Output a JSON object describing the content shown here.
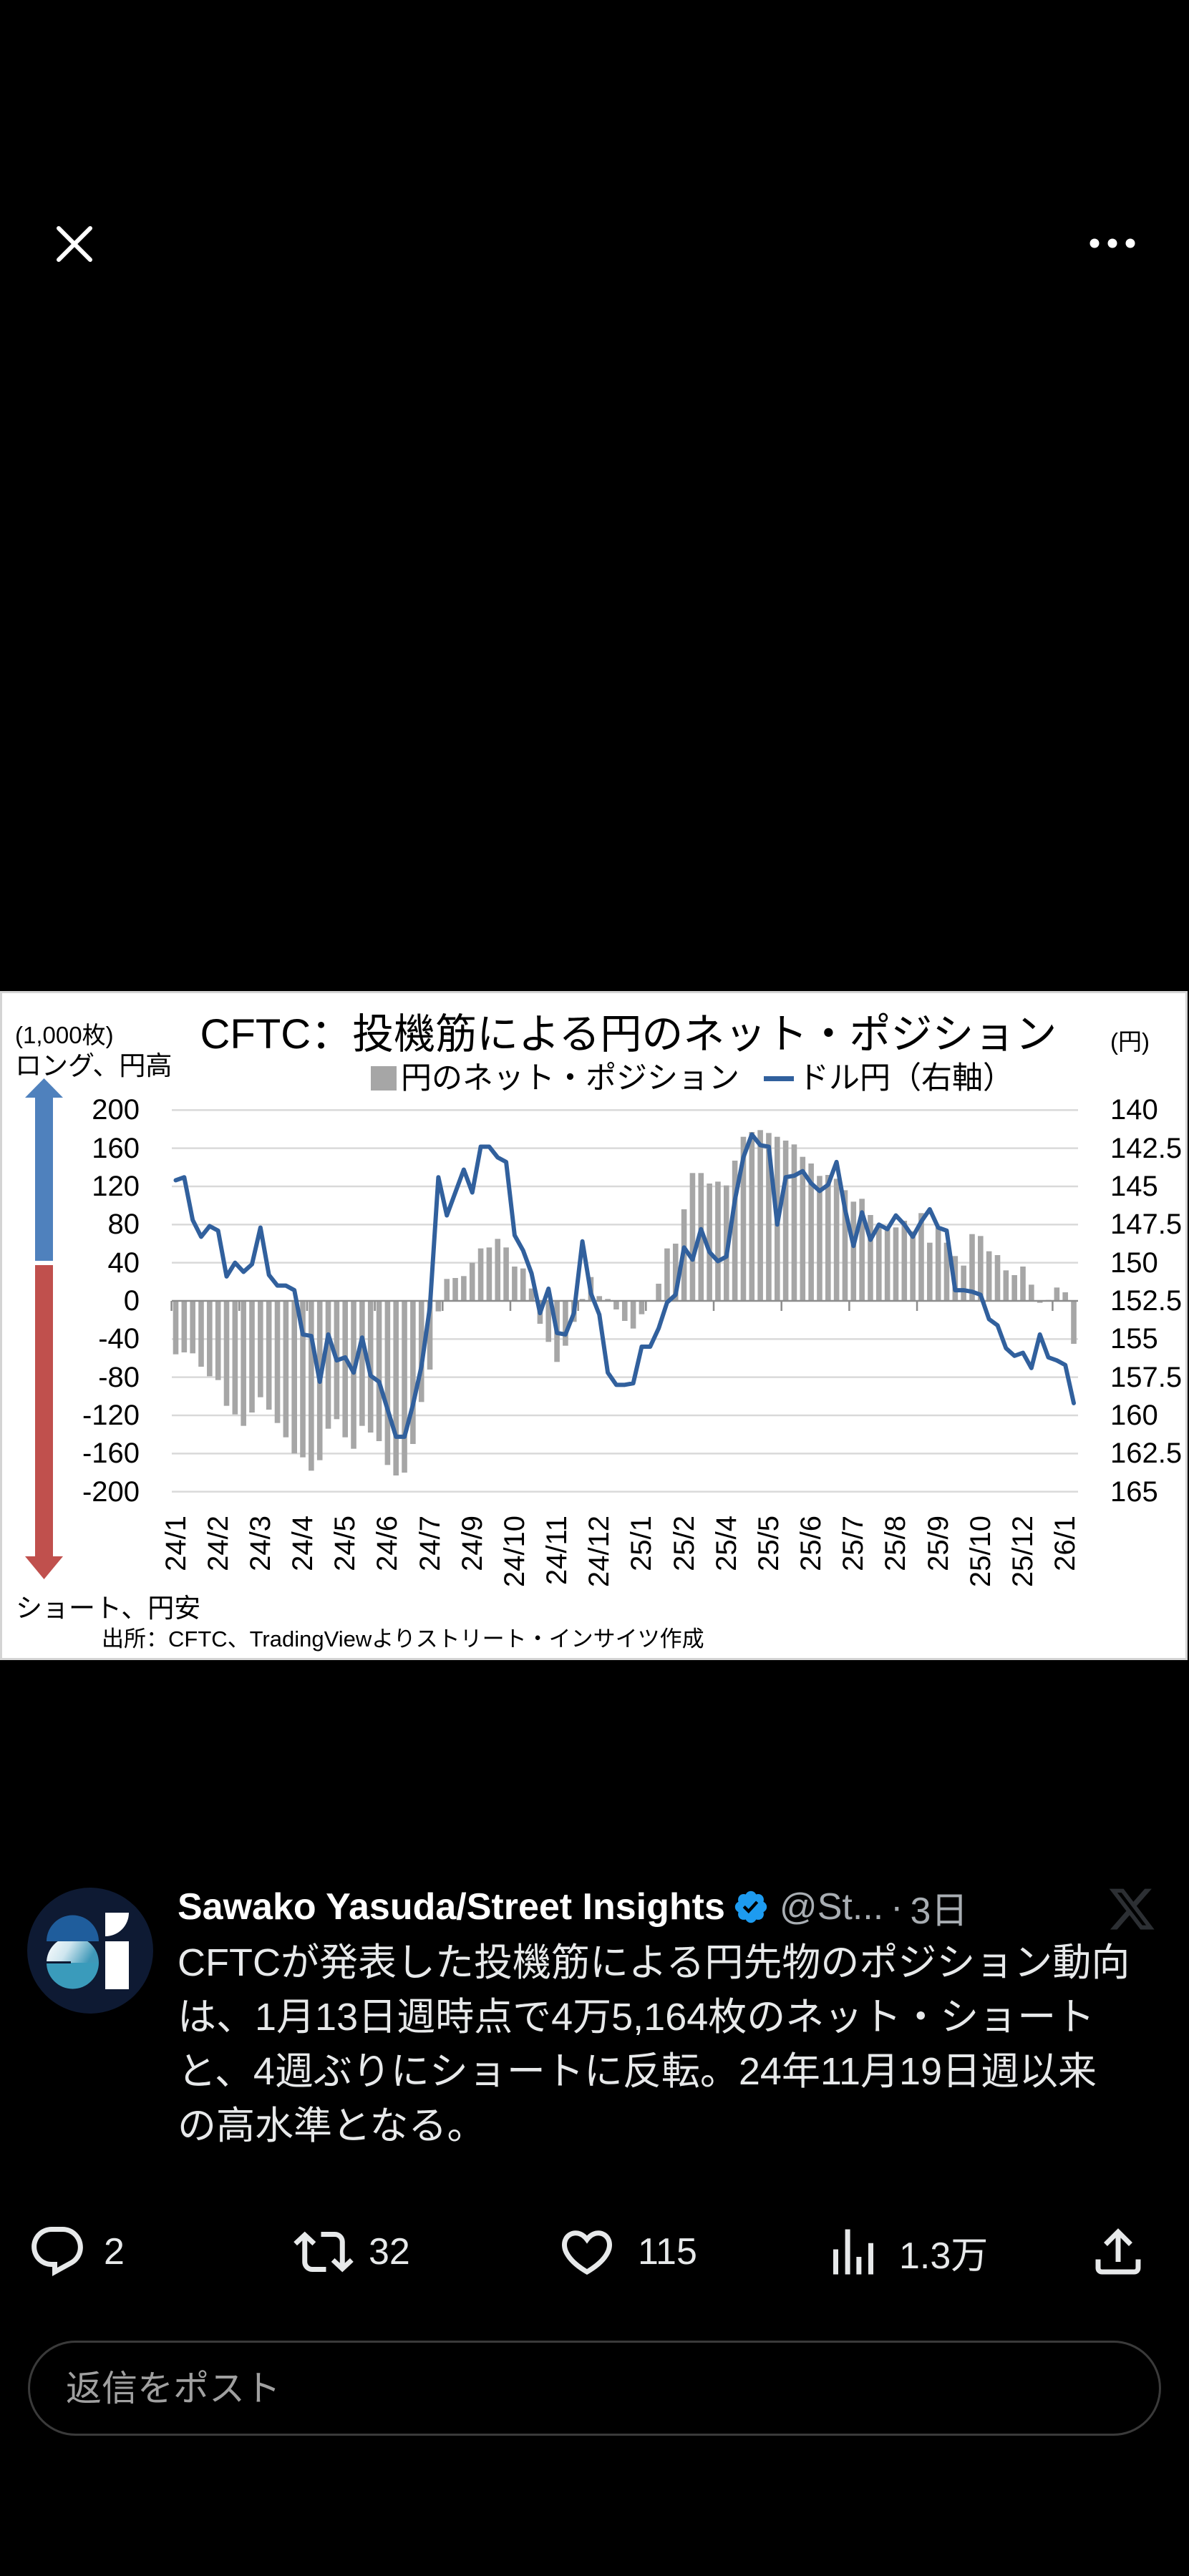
{
  "top_bar": {
    "left_icon": "close-icon",
    "right_icon": "more-icon"
  },
  "chart_data": {
    "type": "bar",
    "title": "CFTC：投機筋による円のネット・ポジション",
    "ylabel": "(1,000枚)",
    "y2label": "(円)",
    "xlabel": "",
    "annotations": {
      "long_label": "ロング、円高",
      "short_label": "ショート、円安"
    },
    "source": "出所：CFTC、TradingViewよりストリート・インサイツ作成",
    "legend_position": "top",
    "grid": true,
    "legend": [
      {
        "label": "円のネット・ポジション",
        "marker": "square",
        "color": "#a6a6a6"
      },
      {
        "label": "ドル円（右軸）",
        "marker": "line",
        "color": "#31609d"
      }
    ],
    "ylim": [
      -200,
      200
    ],
    "y2lim": [
      140,
      165
    ],
    "y2_inverted": true,
    "y_ticks": [
      200,
      160,
      120,
      80,
      40,
      0,
      -40,
      -80,
      -120,
      -160,
      -200
    ],
    "y2_ticks": [
      "140",
      "142.5",
      "145",
      "147.5",
      "150",
      "152.5",
      "155",
      "157.5",
      "160",
      "162.5",
      "165"
    ],
    "n_points": 107,
    "x_tick_label_step": 5,
    "x_tick_labels": [
      "24/1",
      "24/2",
      "24/3",
      "24/4",
      "24/5",
      "24/6",
      "24/7",
      "24/9",
      "24/10",
      "24/11",
      "24/12",
      "25/1",
      "25/2",
      "25/4",
      "25/5",
      "25/6",
      "25/7",
      "25/8",
      "25/9",
      "25/10",
      "25/12",
      "26/1"
    ],
    "colors": {
      "grid": "#d9d9d9",
      "axis": "#8c8c8c",
      "long_arrow": "#4f81bd",
      "short_arrow": "#c0504d"
    },
    "series": [
      {
        "name": "円のネット・ポジション",
        "type": "bar",
        "axis": "left",
        "color": "#a6a6a6",
        "values": [
          -56,
          -54,
          -55,
          -69,
          -79,
          -83,
          -110,
          -119,
          -131,
          -117,
          -101,
          -114,
          -128,
          -143,
          -160,
          -164,
          -178,
          -167,
          -134,
          -124,
          -143,
          -155,
          -131,
          -138,
          -147,
          -172,
          -183,
          -180,
          -150,
          -106,
          -72,
          -11,
          23,
          24,
          26,
          40,
          55,
          56,
          65,
          56,
          36,
          34,
          13,
          -24,
          -43,
          -64,
          -47,
          -22,
          2,
          25,
          5,
          2,
          -9,
          -21,
          -29,
          -14,
          0,
          18,
          55,
          60,
          96,
          134,
          134,
          123,
          125,
          121,
          147,
          172,
          177,
          179,
          176,
          172,
          168,
          164,
          151,
          144,
          131,
          132,
          128,
          116,
          104,
          107,
          90,
          80,
          77,
          77,
          84,
          73,
          92,
          61,
          77,
          61,
          47,
          37,
          70,
          68,
          52,
          48,
          32,
          27,
          36,
          17,
          -2,
          1,
          14,
          9,
          -45
        ]
      },
      {
        "name": "ドル円（右軸）",
        "type": "line",
        "axis": "right",
        "color": "#31609d",
        "values": [
          144.6,
          144.4,
          147.2,
          148.3,
          147.6,
          147.9,
          150.9,
          150.0,
          150.6,
          150.1,
          147.7,
          150.8,
          151.5,
          151.5,
          151.8,
          154.7,
          154.8,
          157.8,
          154.7,
          156.4,
          156.2,
          157.2,
          154.9,
          157.4,
          157.8,
          159.6,
          161.4,
          161.4,
          159.3,
          156.8,
          152.9,
          144.4,
          146.9,
          145.4,
          143.9,
          145.4,
          142.4,
          142.4,
          143.1,
          143.4,
          148.2,
          149.2,
          150.7,
          153.3,
          151.7,
          154.6,
          154.7,
          153.3,
          148.6,
          152.0,
          153.4,
          157.2,
          158.0,
          158.0,
          157.9,
          155.5,
          155.5,
          154.3,
          152.6,
          152.1,
          149.0,
          149.8,
          147.8,
          149.3,
          149.9,
          149.6,
          145.9,
          143.1,
          141.6,
          142.3,
          142.4,
          147.5,
          144.4,
          144.3,
          144.0,
          144.8,
          145.3,
          144.9,
          143.4,
          146.5,
          148.9,
          146.7,
          148.5,
          147.5,
          147.8,
          146.9,
          147.5,
          148.3,
          147.3,
          146.5,
          147.7,
          147.9,
          151.8,
          151.8,
          151.9,
          152.1,
          153.7,
          154.1,
          155.6,
          156.1,
          155.9,
          156.9,
          154.7,
          156.2,
          156.4,
          156.7,
          159.2
        ]
      }
    ]
  },
  "tweet": {
    "avatar_icon": "street-insights-logo-icon",
    "author_name": "Sawako Yasuda/Street Insights",
    "verified_icon": "verified-badge-icon",
    "handle": "@St...",
    "separator": "·",
    "time": "3日",
    "platform_icon": "x-logo-icon",
    "text_lines": [
      "CFTCが発表した投機筋による円先物のポジション動向",
      "は、1月13日週時点で4万5,164枚のネット・ショート",
      "と、4週ぶりにショートに反転。24年11月19日週以来",
      "の高水準となる。"
    ]
  },
  "actions": {
    "reply": {
      "icon": "reply-icon",
      "count": "2"
    },
    "retweet": {
      "icon": "retweet-icon",
      "count": "32"
    },
    "like": {
      "icon": "heart-icon",
      "count": "115"
    },
    "views": {
      "icon": "views-chart-icon",
      "count": "1.3万"
    },
    "share": {
      "icon": "share-icon"
    }
  },
  "reply_box": {
    "placeholder": "返信をポスト",
    "value": ""
  },
  "colors": {
    "background": "#000000",
    "text": "#e7e9ea",
    "secondary_text": "#a8adb2",
    "verified": "#1d9bf0",
    "avatar_bg": "#0e1a33",
    "reply_border": "#3a3a3a"
  }
}
